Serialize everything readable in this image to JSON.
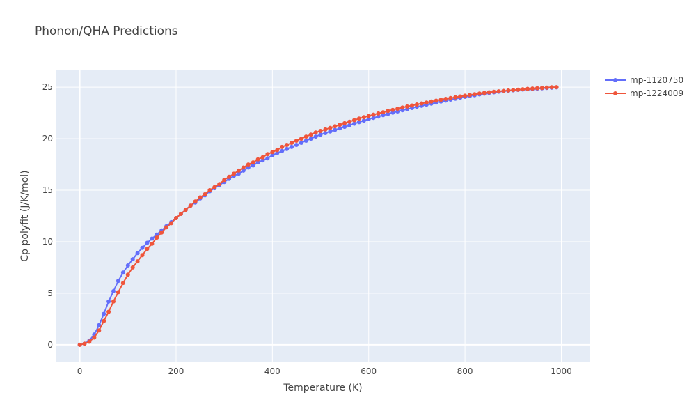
{
  "chart_data": {
    "type": "line",
    "title": "Phonon/QHA Predictions",
    "xlabel": "Temperature (K)",
    "ylabel": "Cp polyfit (J/K/mol)",
    "xlim": [
      -50,
      1060
    ],
    "ylim": [
      -1.7,
      26.7
    ],
    "xticks": [
      0,
      200,
      400,
      600,
      800,
      1000
    ],
    "yticks": [
      0,
      5,
      10,
      15,
      20,
      25
    ],
    "grid": true,
    "legend_position": "top-right",
    "plot_background": "#E5ECF6",
    "x": [
      0,
      10,
      20,
      30,
      40,
      50,
      60,
      70,
      80,
      90,
      100,
      110,
      120,
      130,
      140,
      150,
      160,
      170,
      180,
      190,
      200,
      210,
      220,
      230,
      240,
      250,
      260,
      270,
      280,
      290,
      300,
      310,
      320,
      330,
      340,
      350,
      360,
      370,
      380,
      390,
      400,
      410,
      420,
      430,
      440,
      450,
      460,
      470,
      480,
      490,
      500,
      510,
      520,
      530,
      540,
      550,
      560,
      570,
      580,
      590,
      600,
      610,
      620,
      630,
      640,
      650,
      660,
      670,
      680,
      690,
      700,
      710,
      720,
      730,
      740,
      750,
      760,
      770,
      780,
      790,
      800,
      810,
      820,
      830,
      840,
      850,
      860,
      870,
      880,
      890,
      900,
      910,
      920,
      930,
      940,
      950,
      960,
      970,
      980,
      990
    ],
    "series": [
      {
        "name": "mp-1120750",
        "color": "#636EFA",
        "values": [
          0.0,
          0.1,
          0.4,
          1.0,
          1.9,
          3.0,
          4.2,
          5.2,
          6.2,
          7.0,
          7.7,
          8.3,
          8.9,
          9.4,
          9.9,
          10.3,
          10.7,
          11.1,
          11.5,
          11.9,
          12.3,
          12.7,
          13.1,
          13.5,
          13.8,
          14.2,
          14.5,
          14.9,
          15.2,
          15.5,
          15.8,
          16.1,
          16.4,
          16.6,
          16.9,
          17.2,
          17.4,
          17.7,
          17.9,
          18.1,
          18.4,
          18.6,
          18.8,
          19.0,
          19.2,
          19.4,
          19.6,
          19.8,
          20.0,
          20.2,
          20.4,
          20.55,
          20.7,
          20.85,
          21.0,
          21.15,
          21.3,
          21.45,
          21.6,
          21.75,
          21.9,
          22.02,
          22.15,
          22.28,
          22.4,
          22.52,
          22.64,
          22.76,
          22.87,
          22.98,
          23.09,
          23.19,
          23.3,
          23.4,
          23.5,
          23.6,
          23.7,
          23.79,
          23.88,
          23.97,
          24.06,
          24.14,
          24.22,
          24.3,
          24.37,
          24.44,
          24.5,
          24.56,
          24.61,
          24.66,
          24.7,
          24.74,
          24.77,
          24.8,
          24.83,
          24.86,
          24.89,
          24.92,
          24.95,
          24.98
        ]
      },
      {
        "name": "mp-1224009",
        "color": "#EF553B",
        "values": [
          0.0,
          0.1,
          0.3,
          0.7,
          1.4,
          2.3,
          3.2,
          4.2,
          5.1,
          6.0,
          6.8,
          7.5,
          8.1,
          8.7,
          9.3,
          9.8,
          10.4,
          10.9,
          11.4,
          11.8,
          12.3,
          12.7,
          13.1,
          13.5,
          13.9,
          14.3,
          14.6,
          15.0,
          15.3,
          15.6,
          16.0,
          16.3,
          16.6,
          16.9,
          17.2,
          17.5,
          17.7,
          18.0,
          18.2,
          18.5,
          18.7,
          18.9,
          19.2,
          19.4,
          19.6,
          19.8,
          20.0,
          20.2,
          20.4,
          20.6,
          20.75,
          20.9,
          21.05,
          21.2,
          21.35,
          21.5,
          21.65,
          21.8,
          21.95,
          22.08,
          22.2,
          22.33,
          22.45,
          22.57,
          22.69,
          22.8,
          22.91,
          23.02,
          23.12,
          23.22,
          23.32,
          23.42,
          23.51,
          23.6,
          23.69,
          23.78,
          23.86,
          23.94,
          24.02,
          24.1,
          24.17,
          24.24,
          24.31,
          24.38,
          24.44,
          24.5,
          24.55,
          24.6,
          24.64,
          24.68,
          24.72,
          24.76,
          24.8,
          24.84,
          24.87,
          24.9,
          24.93,
          24.96,
          24.99,
          25.0
        ]
      }
    ]
  }
}
